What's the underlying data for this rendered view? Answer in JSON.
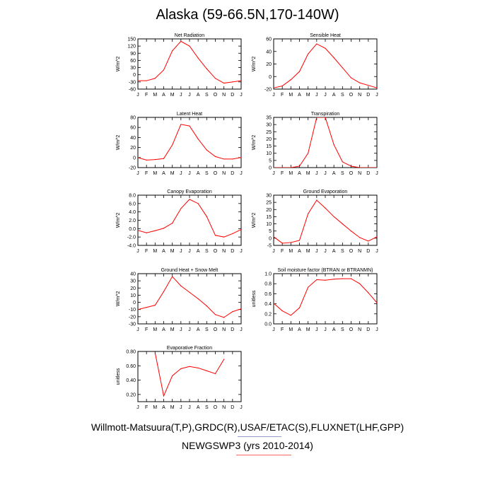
{
  "page": {
    "title": "Alaska (59-66.5N,170-140W)",
    "footer_line1": "Willmott-Matsuura(T,P),GRDC(R),USAF/ETAC(S),FLUXNET(LHF,GPP)",
    "footer_line2": "NEWGSWP3 (yrs 2010-2014)",
    "rule_colors": [
      "#9999cc",
      "#ff6666"
    ]
  },
  "chart_data": [
    {
      "type": "line",
      "title": "Net Radiation",
      "ylabel": "W/m^2",
      "categories": [
        "J",
        "F",
        "M",
        "A",
        "M",
        "J",
        "J",
        "A",
        "S",
        "O",
        "N",
        "D",
        "J"
      ],
      "ylim": [
        -60,
        150
      ],
      "yticks": [
        "-60",
        "-30",
        "0",
        "30",
        "60",
        "90",
        "120",
        "150"
      ],
      "color": "#ff0000",
      "values": [
        -25,
        -25,
        -15,
        20,
        100,
        140,
        120,
        70,
        25,
        -15,
        -35,
        -30,
        -25
      ]
    },
    {
      "type": "line",
      "title": "Sensible Heat",
      "ylabel": "W/m^2",
      "categories": [
        "J",
        "F",
        "M",
        "A",
        "M",
        "J",
        "J",
        "A",
        "S",
        "O",
        "N",
        "D",
        "J"
      ],
      "ylim": [
        -20,
        60
      ],
      "yticks": [
        "-20",
        "0",
        "20",
        "40",
        "60"
      ],
      "color": "#ff0000",
      "values": [
        -18,
        -15,
        -5,
        8,
        36,
        52,
        45,
        30,
        14,
        -2,
        -10,
        -14,
        -18
      ]
    },
    {
      "type": "line",
      "title": "Latent Heat",
      "ylabel": "W/m^2",
      "categories": [
        "J",
        "F",
        "M",
        "A",
        "M",
        "J",
        "J",
        "A",
        "S",
        "O",
        "N",
        "D",
        "J"
      ],
      "ylim": [
        -20,
        80
      ],
      "yticks": [
        "-20",
        "0",
        "20",
        "40",
        "60",
        "80"
      ],
      "color": "#ff0000",
      "values": [
        0,
        -5,
        -4,
        -2,
        25,
        66,
        63,
        37,
        15,
        2,
        -3,
        -3,
        0
      ]
    },
    {
      "type": "line",
      "title": "Transpiration",
      "ylabel": "W/m^2",
      "categories": [
        "J",
        "F",
        "M",
        "A",
        "M",
        "J",
        "J",
        "A",
        "S",
        "O",
        "N",
        "D",
        "J"
      ],
      "ylim": [
        0,
        35
      ],
      "yticks": [
        "0",
        "5",
        "10",
        "15",
        "20",
        "25",
        "30",
        "35"
      ],
      "color": "#ff0000",
      "values": [
        0,
        0,
        0,
        1,
        10,
        35,
        35,
        16,
        4,
        1,
        0,
        0,
        0
      ]
    },
    {
      "type": "line",
      "title": "Canopy Evaporation",
      "ylabel": "W/m^2",
      "categories": [
        "J",
        "F",
        "M",
        "A",
        "M",
        "J",
        "J",
        "A",
        "S",
        "O",
        "N",
        "D",
        "J"
      ],
      "ylim": [
        -4,
        8
      ],
      "yticks": [
        "-4.0",
        "-2.0",
        "0.0",
        "2.0",
        "4.0",
        "6.0",
        "8.0"
      ],
      "color": "#ff0000",
      "values": [
        -0.4,
        -1.0,
        -0.5,
        0.1,
        1.3,
        4.8,
        7.0,
        6.0,
        2.9,
        -1.6,
        -2.0,
        -1.2,
        -0.2
      ]
    },
    {
      "type": "line",
      "title": "Ground Evaporation",
      "ylabel": "W/m^2",
      "categories": [
        "J",
        "F",
        "M",
        "A",
        "M",
        "J",
        "J",
        "A",
        "S",
        "O",
        "N",
        "D",
        "J"
      ],
      "ylim": [
        -5,
        30
      ],
      "yticks": [
        "-5",
        "0",
        "5",
        "10",
        "15",
        "20",
        "25",
        "30"
      ],
      "color": "#ff0000",
      "values": [
        1,
        -3.5,
        -3,
        -1.5,
        17,
        26.5,
        21,
        15,
        10,
        5,
        0.5,
        -2,
        1
      ]
    },
    {
      "type": "line",
      "title": "Ground Heat + Snow Melt",
      "ylabel": "W/m^2",
      "categories": [
        "J",
        "F",
        "M",
        "A",
        "M",
        "J",
        "J",
        "A",
        "S",
        "O",
        "N",
        "D",
        "J"
      ],
      "ylim": [
        -30,
        40
      ],
      "yticks": [
        "-30",
        "-20",
        "-10",
        "0",
        "10",
        "20",
        "30",
        "40"
      ],
      "color": "#ff0000",
      "values": [
        -10,
        -7,
        -4,
        15,
        36,
        23,
        14,
        5,
        -5,
        -17,
        -21,
        -13,
        -9
      ]
    },
    {
      "type": "line",
      "title": "Soil moisture factor (BTRAN or BTRANMN)",
      "ylabel": "unitless",
      "categories": [
        "J",
        "F",
        "M",
        "A",
        "M",
        "J",
        "J",
        "A",
        "S",
        "O",
        "N",
        "D",
        "J"
      ],
      "ylim": [
        0,
        1
      ],
      "yticks": [
        "0.0",
        "0.2",
        "0.4",
        "0.6",
        "0.8",
        "1.0"
      ],
      "color": "#ff0000",
      "values": [
        0.41,
        0.26,
        0.17,
        0.32,
        0.73,
        0.88,
        0.87,
        0.89,
        0.9,
        0.9,
        0.8,
        0.62,
        0.42
      ]
    },
    {
      "type": "line",
      "title": "Evaporative Fraction",
      "ylabel": "unitless",
      "categories": [
        "J",
        "F",
        "M",
        "A",
        "M",
        "J",
        "J",
        "A",
        "S",
        "O",
        "N",
        "D",
        "J"
      ],
      "ylim": [
        0.1,
        0.8
      ],
      "yticks": [
        "0.20",
        "0.40",
        "0.60",
        "0.80"
      ],
      "color": "#ff0000",
      "values": [
        null,
        null,
        0.78,
        0.18,
        0.46,
        0.56,
        0.59,
        0.57,
        0.53,
        0.49,
        0.69,
        null,
        null
      ]
    }
  ]
}
